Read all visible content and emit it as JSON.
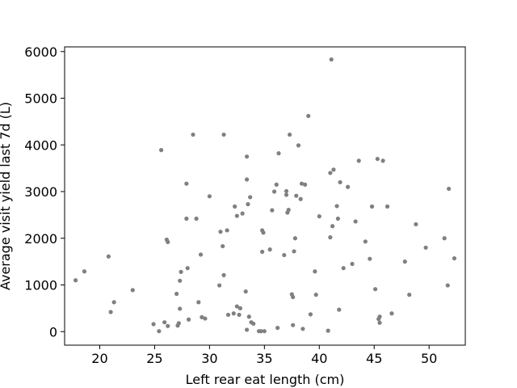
{
  "chart_data": {
    "type": "scatter",
    "title": "",
    "xlabel": "Left rear eat length (cm)",
    "ylabel": "Average visit yield last 7d (L)",
    "xlim": [
      16.8,
      53.3
    ],
    "ylim": [
      -290,
      6100
    ],
    "xticks": [
      20,
      25,
      30,
      35,
      40,
      45,
      50
    ],
    "yticks": [
      0,
      1000,
      2000,
      3000,
      4000,
      5000,
      6000
    ],
    "grid": false,
    "marker_color": "#808080",
    "points": [
      [
        17.8,
        1100
      ],
      [
        18.6,
        1290
      ],
      [
        20.8,
        1610
      ],
      [
        21.0,
        420
      ],
      [
        21.3,
        630
      ],
      [
        23.0,
        890
      ],
      [
        24.9,
        160
      ],
      [
        25.4,
        10
      ],
      [
        25.6,
        3890
      ],
      [
        25.9,
        200
      ],
      [
        26.1,
        1970
      ],
      [
        26.2,
        1920
      ],
      [
        26.2,
        120
      ],
      [
        27.0,
        810
      ],
      [
        27.1,
        130
      ],
      [
        27.2,
        180
      ],
      [
        27.3,
        490
      ],
      [
        27.3,
        1090
      ],
      [
        27.4,
        1280
      ],
      [
        27.9,
        3170
      ],
      [
        27.9,
        2420
      ],
      [
        28.0,
        1360
      ],
      [
        28.1,
        260
      ],
      [
        28.5,
        4220
      ],
      [
        28.8,
        2420
      ],
      [
        29.0,
        630
      ],
      [
        29.2,
        1650
      ],
      [
        29.3,
        310
      ],
      [
        29.6,
        280
      ],
      [
        30.0,
        2900
      ],
      [
        30.9,
        990
      ],
      [
        31.0,
        2140
      ],
      [
        31.2,
        1830
      ],
      [
        31.3,
        4220
      ],
      [
        31.3,
        1210
      ],
      [
        31.6,
        2170
      ],
      [
        31.7,
        360
      ],
      [
        32.2,
        390
      ],
      [
        32.3,
        2680
      ],
      [
        32.5,
        540
      ],
      [
        32.5,
        2480
      ],
      [
        32.7,
        360
      ],
      [
        32.8,
        500
      ],
      [
        33.0,
        2530
      ],
      [
        33.3,
        860
      ],
      [
        33.4,
        40
      ],
      [
        33.4,
        3750
      ],
      [
        33.4,
        3260
      ],
      [
        33.5,
        2730
      ],
      [
        33.6,
        320
      ],
      [
        33.7,
        2880
      ],
      [
        33.8,
        200
      ],
      [
        34.0,
        170
      ],
      [
        34.5,
        10
      ],
      [
        34.7,
        10
      ],
      [
        34.8,
        1710
      ],
      [
        34.8,
        2170
      ],
      [
        34.9,
        2120
      ],
      [
        35.0,
        10
      ],
      [
        35.5,
        1760
      ],
      [
        35.7,
        2600
      ],
      [
        35.9,
        3000
      ],
      [
        36.1,
        3150
      ],
      [
        36.2,
        80
      ],
      [
        36.3,
        3820
      ],
      [
        36.8,
        1640
      ],
      [
        37.0,
        3010
      ],
      [
        37.0,
        2930
      ],
      [
        37.1,
        2550
      ],
      [
        37.2,
        2610
      ],
      [
        37.3,
        4220
      ],
      [
        37.5,
        800
      ],
      [
        37.6,
        740
      ],
      [
        37.6,
        140
      ],
      [
        37.7,
        1720
      ],
      [
        37.8,
        2000
      ],
      [
        37.9,
        2910
      ],
      [
        38.1,
        3990
      ],
      [
        38.3,
        2840
      ],
      [
        38.4,
        3170
      ],
      [
        38.5,
        60
      ],
      [
        38.7,
        3150
      ],
      [
        39.0,
        4620
      ],
      [
        39.2,
        370
      ],
      [
        39.6,
        1290
      ],
      [
        39.7,
        790
      ],
      [
        40.0,
        2470
      ],
      [
        40.8,
        20
      ],
      [
        41.0,
        2020
      ],
      [
        41.0,
        3400
      ],
      [
        41.1,
        5830
      ],
      [
        41.2,
        2260
      ],
      [
        41.3,
        3470
      ],
      [
        41.6,
        2690
      ],
      [
        41.7,
        2420
      ],
      [
        41.8,
        470
      ],
      [
        41.9,
        3200
      ],
      [
        42.2,
        1360
      ],
      [
        42.6,
        3100
      ],
      [
        43.0,
        1450
      ],
      [
        43.3,
        2360
      ],
      [
        43.6,
        3660
      ],
      [
        44.2,
        1930
      ],
      [
        44.6,
        1560
      ],
      [
        44.8,
        2680
      ],
      [
        45.1,
        910
      ],
      [
        45.3,
        3700
      ],
      [
        45.4,
        270
      ],
      [
        45.5,
        190
      ],
      [
        45.5,
        320
      ],
      [
        45.8,
        3660
      ],
      [
        46.2,
        2680
      ],
      [
        46.6,
        390
      ],
      [
        47.8,
        1500
      ],
      [
        48.2,
        790
      ],
      [
        48.8,
        2300
      ],
      [
        49.7,
        1800
      ],
      [
        51.4,
        2000
      ],
      [
        51.7,
        990
      ],
      [
        51.8,
        3060
      ],
      [
        52.3,
        1570
      ]
    ]
  }
}
